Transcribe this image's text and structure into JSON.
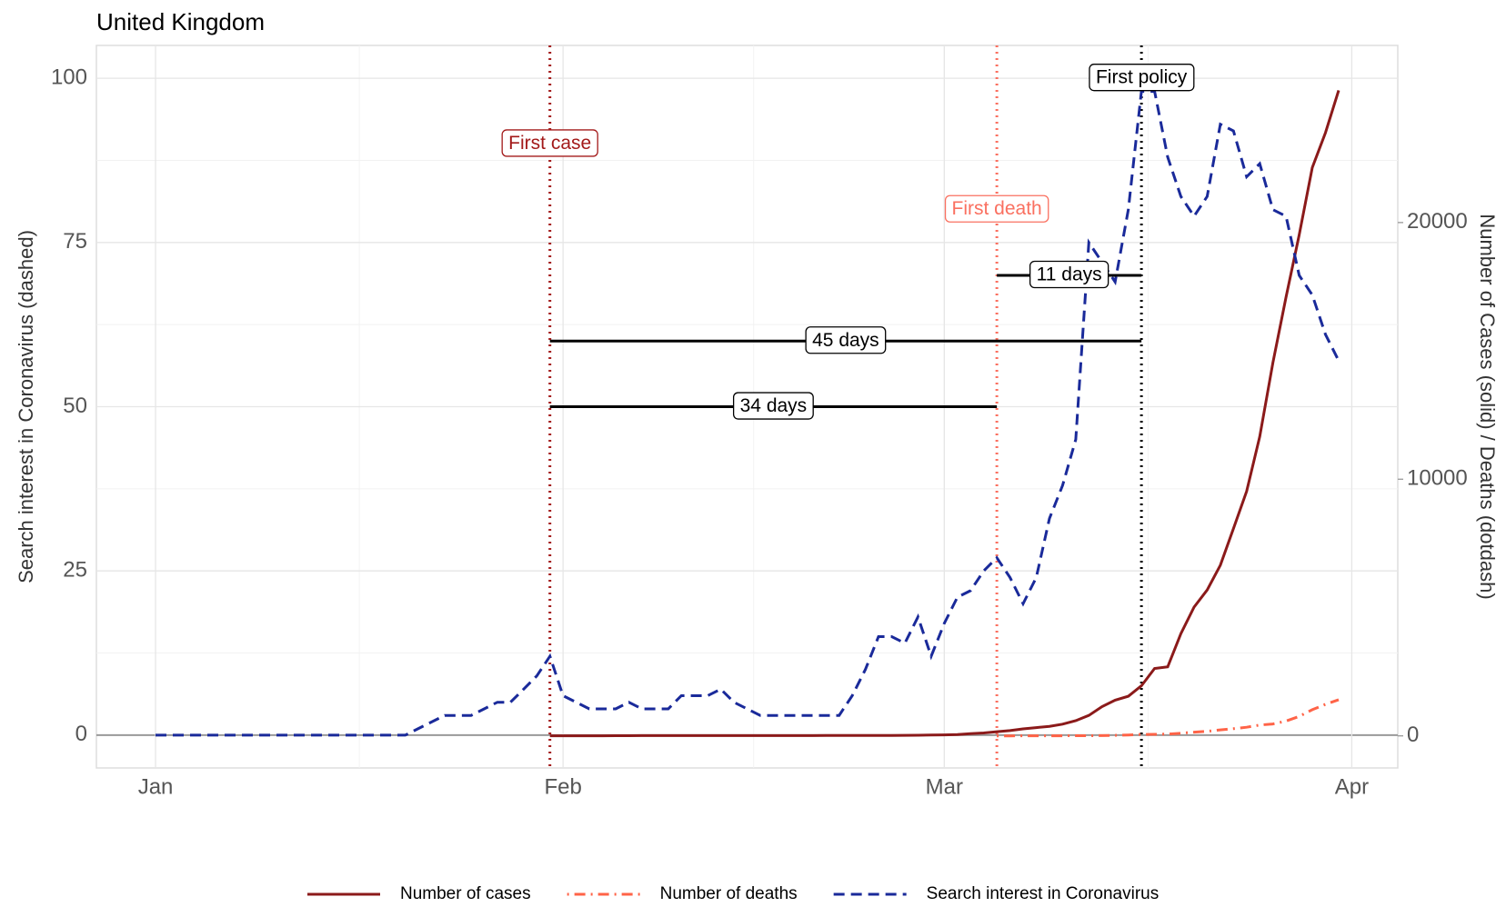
{
  "chart_data": {
    "type": "line",
    "title": "United Kingdom",
    "ylabel": "Search interest in Coronavirus (dashed)",
    "y2label": "Number of Cases (solid) / Deaths (dotdash)",
    "xlim": [
      -4.5,
      94.5
    ],
    "xticks": [
      {
        "value": 0,
        "label": "Jan"
      },
      {
        "value": 31,
        "label": "Feb"
      },
      {
        "value": 60,
        "label": "Mar"
      },
      {
        "value": 91,
        "label": "Apr"
      }
    ],
    "ylim": [
      -5,
      105
    ],
    "yticks": [
      0,
      25,
      50,
      75,
      100
    ],
    "y2lim": [
      -1250,
      26900
    ],
    "y2ticks": [
      0,
      10000,
      20000
    ],
    "grid": true,
    "legend": "bottom",
    "series": [
      {
        "name": "Number of cases",
        "color": "#8b1a1a",
        "linestyle": "solid",
        "axis": "y2",
        "x": [
          30,
          31,
          32,
          33,
          34,
          35,
          36,
          37,
          38,
          39,
          40,
          41,
          42,
          43,
          44,
          45,
          46,
          47,
          48,
          49,
          50,
          51,
          52,
          53,
          54,
          55,
          56,
          57,
          58,
          59,
          60,
          61,
          62,
          63,
          64,
          65,
          66,
          67,
          68,
          69,
          70,
          71,
          72,
          73,
          74,
          75,
          76,
          77,
          78,
          79,
          80,
          81,
          82,
          83,
          84,
          85,
          86,
          87,
          88,
          89,
          90
        ],
        "values": [
          2,
          2,
          2,
          2,
          2,
          8,
          8,
          9,
          9,
          9,
          9,
          9,
          9,
          9,
          9,
          9,
          9,
          9,
          9,
          9,
          9,
          13,
          13,
          13,
          13,
          13,
          15,
          20,
          23,
          36,
          40,
          51,
          85,
          115,
          163,
          206,
          273,
          321,
          373,
          456,
          590,
          798,
          1140,
          1391,
          1543,
          1950,
          2626,
          2689,
          3983,
          5018,
          5683,
          6650,
          8077,
          9529,
          11658,
          14543,
          17089,
          19522,
          22141,
          23500,
          25150
        ]
      },
      {
        "name": "Number of deaths",
        "color": "#ff6347",
        "linestyle": "dotdash",
        "axis": "y2",
        "x": [
          64,
          65,
          66,
          67,
          68,
          69,
          70,
          71,
          72,
          73,
          74,
          75,
          76,
          77,
          78,
          79,
          80,
          81,
          82,
          83,
          84,
          85,
          86,
          87,
          88,
          89,
          90
        ],
        "values": [
          1,
          1,
          2,
          2,
          3,
          4,
          6,
          8,
          10,
          21,
          35,
          55,
          60,
          72,
          104,
          144,
          177,
          233,
          281,
          335,
          422,
          465,
          578,
          759,
          1019,
          1228,
          1408
        ]
      },
      {
        "name": "Search interest in Coronavirus",
        "color": "#1a2a9a",
        "linestyle": "dashed",
        "x": [
          0,
          1,
          2,
          3,
          4,
          5,
          6,
          7,
          8,
          9,
          10,
          11,
          12,
          13,
          14,
          15,
          16,
          17,
          18,
          19,
          20,
          21,
          22,
          23,
          24,
          25,
          26,
          27,
          28,
          29,
          30,
          31,
          32,
          33,
          34,
          35,
          36,
          37,
          38,
          39,
          40,
          41,
          42,
          43,
          44,
          45,
          46,
          47,
          48,
          49,
          50,
          51,
          52,
          53,
          54,
          55,
          56,
          57,
          58,
          59,
          60,
          61,
          62,
          63,
          64,
          65,
          66,
          67,
          68,
          69,
          70,
          71,
          72,
          73,
          74,
          75,
          76,
          77,
          78,
          79,
          80,
          81,
          82,
          83,
          84,
          85,
          86,
          87,
          88,
          89,
          90
        ],
        "values": [
          0,
          0,
          0,
          0,
          0,
          0,
          0,
          0,
          0,
          0,
          0,
          0,
          0,
          0,
          0,
          0,
          0,
          0,
          0,
          0,
          1,
          2,
          3,
          3,
          3,
          4,
          5,
          5,
          7,
          9,
          12,
          6,
          5,
          4,
          4,
          4,
          5,
          4,
          4,
          4,
          6,
          6,
          6,
          7,
          5,
          4,
          3,
          3,
          3,
          3,
          3,
          3,
          3,
          6,
          10,
          15,
          15,
          14,
          18,
          12,
          17,
          21,
          22,
          25,
          27,
          24,
          20,
          24,
          33,
          38,
          45,
          75,
          72,
          69,
          80,
          98,
          98,
          88,
          82,
          79,
          82,
          93,
          92,
          85,
          87,
          80,
          79,
          70,
          67,
          61,
          57
        ]
      }
    ],
    "vlines": [
      {
        "x": 30,
        "label": "First case",
        "color": "#a31a1a",
        "y": 90
      },
      {
        "x": 64,
        "label": "First death",
        "color": "#fa7060",
        "y": 80
      },
      {
        "x": 75,
        "label": "First policy",
        "color": "#000000",
        "y": 100
      }
    ],
    "spans": [
      {
        "x0": 64,
        "x1": 75,
        "y": 70,
        "label": "11 days"
      },
      {
        "x0": 30,
        "x1": 75,
        "y": 60,
        "label": "45 days"
      },
      {
        "x0": 30,
        "x1": 64,
        "y": 50,
        "label": "34 days"
      }
    ]
  }
}
